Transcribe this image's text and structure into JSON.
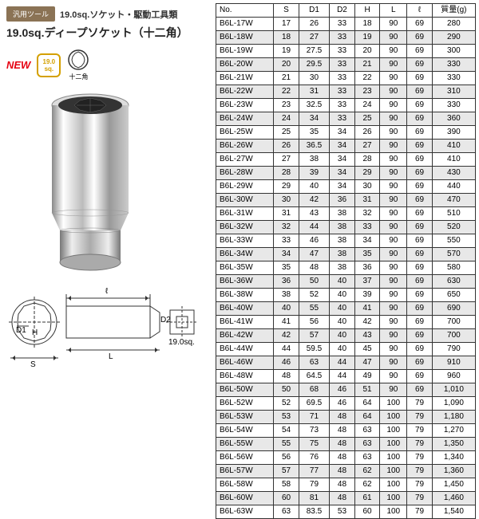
{
  "header": {
    "tag_badge": "汎用ツール",
    "tag_text": "19.0sq.ソケット・駆動工具類",
    "title": "19.0sq.ディープソケット（十二角）",
    "new_label": "NEW",
    "sq_top": "19.0",
    "sq_bot": "sq.",
    "hex_label": "十二角"
  },
  "diagram": {
    "s": "S",
    "d1": "D1",
    "d2": "D2",
    "h": "H",
    "l": "L",
    "l2": "ℓ",
    "sq": "19.0sq."
  },
  "table": {
    "headers": [
      "No.",
      "S",
      "D1",
      "D2",
      "H",
      "L",
      "ℓ",
      "質量(g)"
    ],
    "rows": [
      [
        "B6L-17W",
        "17",
        "26",
        "33",
        "18",
        "90",
        "69",
        "280"
      ],
      [
        "B6L-18W",
        "18",
        "27",
        "33",
        "19",
        "90",
        "69",
        "290"
      ],
      [
        "B6L-19W",
        "19",
        "27.5",
        "33",
        "20",
        "90",
        "69",
        "300"
      ],
      [
        "B6L-20W",
        "20",
        "29.5",
        "33",
        "21",
        "90",
        "69",
        "330"
      ],
      [
        "B6L-21W",
        "21",
        "30",
        "33",
        "22",
        "90",
        "69",
        "330"
      ],
      [
        "B6L-22W",
        "22",
        "31",
        "33",
        "23",
        "90",
        "69",
        "310"
      ],
      [
        "B6L-23W",
        "23",
        "32.5",
        "33",
        "24",
        "90",
        "69",
        "330"
      ],
      [
        "B6L-24W",
        "24",
        "34",
        "33",
        "25",
        "90",
        "69",
        "360"
      ],
      [
        "B6L-25W",
        "25",
        "35",
        "34",
        "26",
        "90",
        "69",
        "390"
      ],
      [
        "B6L-26W",
        "26",
        "36.5",
        "34",
        "27",
        "90",
        "69",
        "410"
      ],
      [
        "B6L-27W",
        "27",
        "38",
        "34",
        "28",
        "90",
        "69",
        "410"
      ],
      [
        "B6L-28W",
        "28",
        "39",
        "34",
        "29",
        "90",
        "69",
        "430"
      ],
      [
        "B6L-29W",
        "29",
        "40",
        "34",
        "30",
        "90",
        "69",
        "440"
      ],
      [
        "B6L-30W",
        "30",
        "42",
        "36",
        "31",
        "90",
        "69",
        "470"
      ],
      [
        "B6L-31W",
        "31",
        "43",
        "38",
        "32",
        "90",
        "69",
        "510"
      ],
      [
        "B6L-32W",
        "32",
        "44",
        "38",
        "33",
        "90",
        "69",
        "520"
      ],
      [
        "B6L-33W",
        "33",
        "46",
        "38",
        "34",
        "90",
        "69",
        "550"
      ],
      [
        "B6L-34W",
        "34",
        "47",
        "38",
        "35",
        "90",
        "69",
        "570"
      ],
      [
        "B6L-35W",
        "35",
        "48",
        "38",
        "36",
        "90",
        "69",
        "580"
      ],
      [
        "B6L-36W",
        "36",
        "50",
        "40",
        "37",
        "90",
        "69",
        "630"
      ],
      [
        "B6L-38W",
        "38",
        "52",
        "40",
        "39",
        "90",
        "69",
        "650"
      ],
      [
        "B6L-40W",
        "40",
        "55",
        "40",
        "41",
        "90",
        "69",
        "690"
      ],
      [
        "B6L-41W",
        "41",
        "56",
        "40",
        "42",
        "90",
        "69",
        "700"
      ],
      [
        "B6L-42W",
        "42",
        "57",
        "40",
        "43",
        "90",
        "69",
        "700"
      ],
      [
        "B6L-44W",
        "44",
        "59.5",
        "40",
        "45",
        "90",
        "69",
        "790"
      ],
      [
        "B6L-46W",
        "46",
        "63",
        "44",
        "47",
        "90",
        "69",
        "910"
      ],
      [
        "B6L-48W",
        "48",
        "64.5",
        "44",
        "49",
        "90",
        "69",
        "960"
      ],
      [
        "B6L-50W",
        "50",
        "68",
        "46",
        "51",
        "90",
        "69",
        "1,010"
      ],
      [
        "B6L-52W",
        "52",
        "69.5",
        "46",
        "64",
        "100",
        "79",
        "1,090"
      ],
      [
        "B6L-53W",
        "53",
        "71",
        "48",
        "64",
        "100",
        "79",
        "1,180"
      ],
      [
        "B6L-54W",
        "54",
        "73",
        "48",
        "63",
        "100",
        "79",
        "1,270"
      ],
      [
        "B6L-55W",
        "55",
        "75",
        "48",
        "63",
        "100",
        "79",
        "1,350"
      ],
      [
        "B6L-56W",
        "56",
        "76",
        "48",
        "63",
        "100",
        "79",
        "1,340"
      ],
      [
        "B6L-57W",
        "57",
        "77",
        "48",
        "62",
        "100",
        "79",
        "1,360"
      ],
      [
        "B6L-58W",
        "58",
        "79",
        "48",
        "62",
        "100",
        "79",
        "1,450"
      ],
      [
        "B6L-60W",
        "60",
        "81",
        "48",
        "61",
        "100",
        "79",
        "1,460"
      ],
      [
        "B6L-63W",
        "63",
        "83.5",
        "53",
        "60",
        "100",
        "79",
        "1,540"
      ]
    ],
    "col_widths": [
      "64",
      "28",
      "34",
      "28",
      "28",
      "30",
      "28",
      "48"
    ]
  },
  "colors": {
    "tag_bg": "#8b7355",
    "new": "#e60012",
    "sq_border": "#d4a000",
    "odd_row": "#e8e8e8",
    "border": "#333333"
  }
}
